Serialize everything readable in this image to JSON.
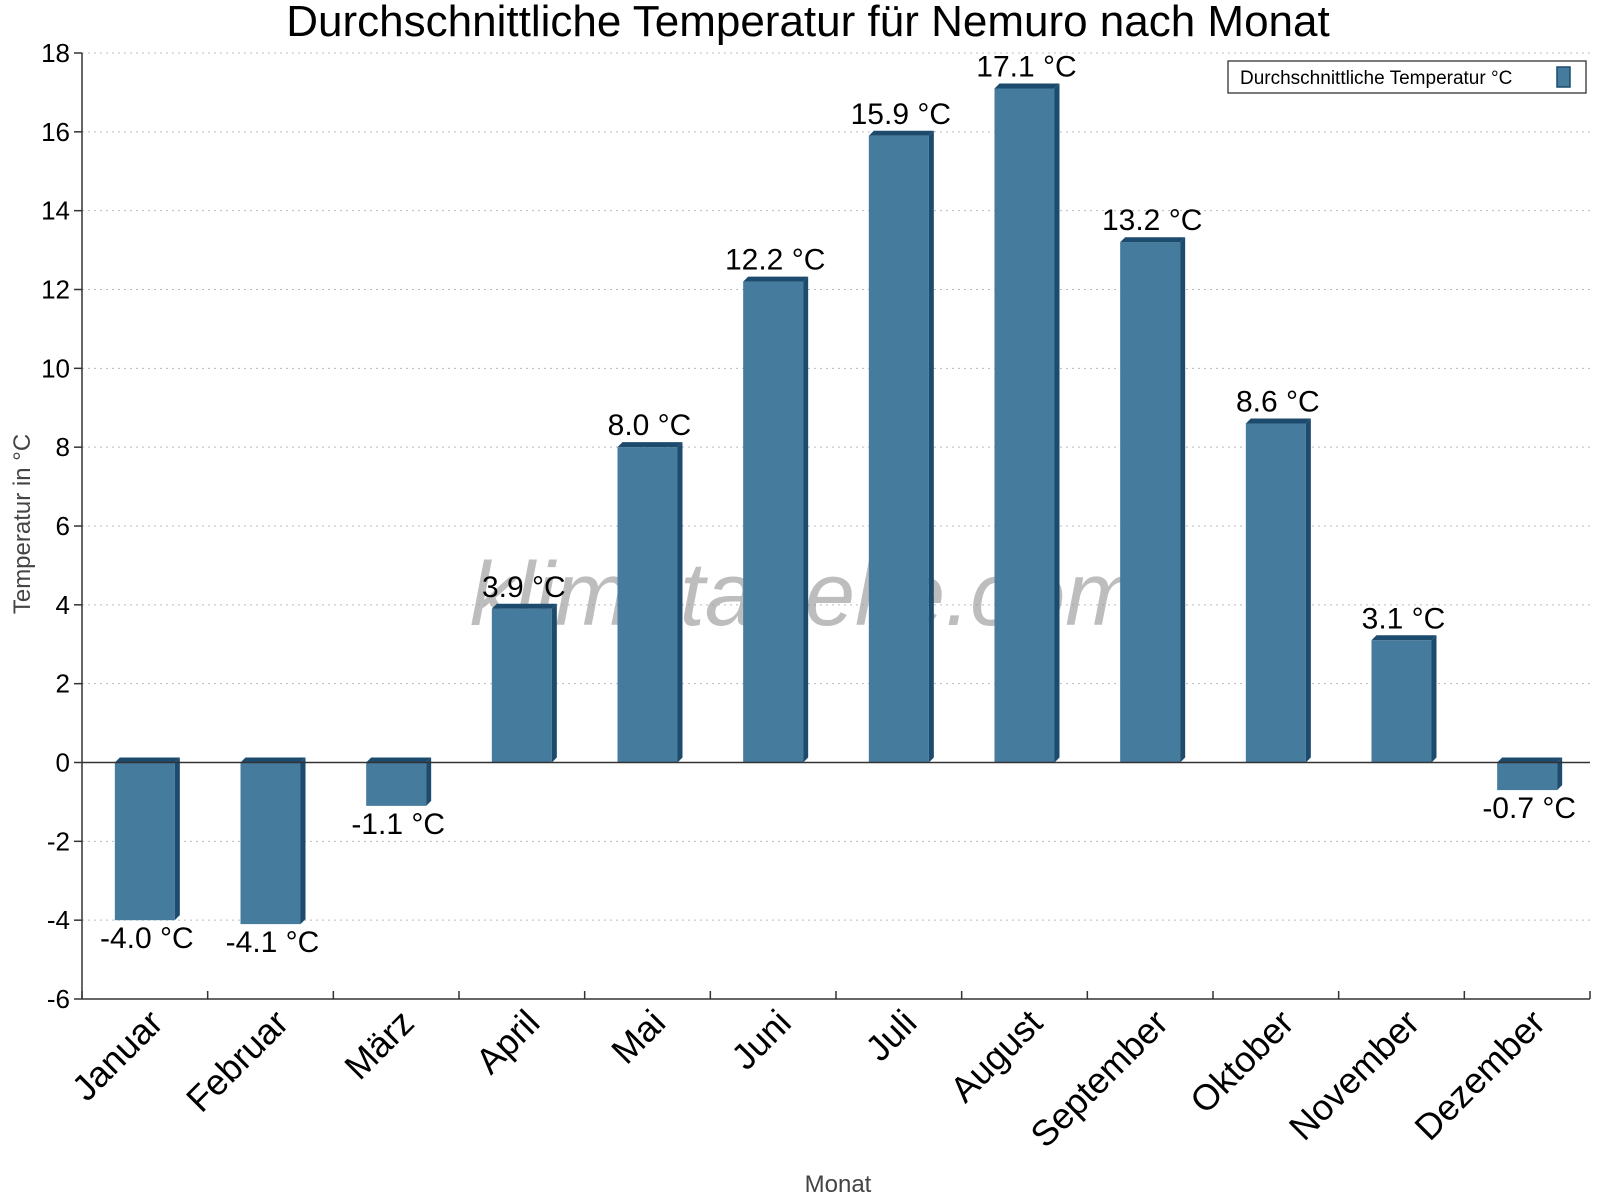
{
  "chart_data": {
    "type": "bar",
    "title": "Durchschnittliche Temperatur für Nemuro nach Monat",
    "xlabel": "Monat",
    "ylabel": "Temperatur in °C",
    "categories": [
      "Januar",
      "Februar",
      "März",
      "April",
      "Mai",
      "Juni",
      "Juli",
      "August",
      "September",
      "Oktober",
      "November",
      "Dezember"
    ],
    "series": [
      {
        "name": "Durchschnittliche Temperatur °C",
        "values": [
          -4.0,
          -4.1,
          -1.1,
          3.9,
          8.0,
          12.2,
          15.9,
          17.1,
          13.2,
          8.6,
          3.1,
          -0.7
        ],
        "labels": [
          "-4.0 °C",
          "-4.1 °C",
          "-1.1 °C",
          "3.9 °C",
          "8.0 °C",
          "12.2 °C",
          "15.9 °C",
          "17.1 °C",
          "13.2 °C",
          "8.6 °C",
          "3.1 °C",
          "-0.7 °C"
        ]
      }
    ],
    "ylim": [
      -6,
      18
    ],
    "yticks": [
      -6,
      -4,
      -2,
      0,
      2,
      4,
      6,
      8,
      10,
      12,
      14,
      16,
      18
    ],
    "grid": true,
    "legend_position": "top-right"
  },
  "watermark": "klimatabelle.com",
  "colors": {
    "bar_face": "#457b9d",
    "bar_side": "#1d4b6e",
    "bar_top": "#1d4b6e"
  }
}
